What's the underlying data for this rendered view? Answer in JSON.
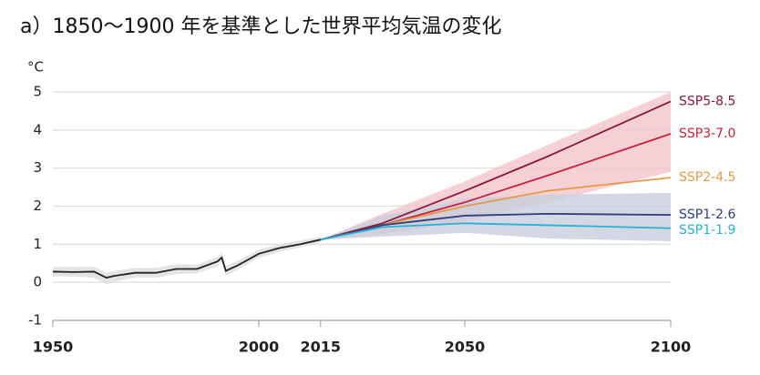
{
  "chart_data": {
    "type": "line",
    "title": "a）1850〜1900 年を基準とした世界平均気温の変化",
    "y_label": "°C",
    "xlim": [
      1950,
      2100
    ],
    "xticks": [
      1950,
      2000,
      2015,
      2050,
      2100
    ],
    "ylim": [
      -1,
      5
    ],
    "yticks": [
      -1,
      0,
      1,
      2,
      3,
      4,
      5
    ],
    "grid": true,
    "series": [
      {
        "color": "#222222",
        "x": [
          1950,
          1955,
          1960,
          1963,
          1965,
          1970,
          1975,
          1980,
          1985,
          1990,
          1991,
          1992,
          1995,
          2000,
          2005,
          2010,
          2015
        ],
        "values": [
          0.28,
          0.27,
          0.28,
          0.12,
          0.17,
          0.25,
          0.25,
          0.35,
          0.35,
          0.55,
          0.65,
          0.3,
          0.45,
          0.75,
          0.9,
          1.0,
          1.12
        ],
        "low": [
          0.15,
          0.15,
          0.12,
          -0.05,
          0.02,
          0.12,
          0.12,
          0.22,
          0.24,
          0.42,
          0.52,
          0.18,
          0.33,
          0.65,
          0.8,
          0.92,
          1.05
        ],
        "high": [
          0.4,
          0.4,
          0.4,
          0.25,
          0.3,
          0.38,
          0.38,
          0.48,
          0.47,
          0.67,
          0.78,
          0.43,
          0.57,
          0.86,
          1.0,
          1.1,
          1.2
        ],
        "band_color": "#dddddd"
      },
      {
        "name": "SSP5-8.5",
        "color": "#8b1a35",
        "x": [
          2015,
          2030,
          2050,
          2070,
          2100
        ],
        "values": [
          1.12,
          1.55,
          2.4,
          3.3,
          4.75
        ]
      },
      {
        "name": "SSP3-7.0",
        "color": "#c8203a",
        "x": [
          2015,
          2030,
          2050,
          2070,
          2100
        ],
        "values": [
          1.12,
          1.5,
          2.1,
          2.8,
          3.9
        ],
        "low": [
          1.12,
          1.25,
          1.6,
          2.1,
          2.9
        ],
        "high": [
          1.12,
          1.8,
          2.65,
          3.6,
          5.0
        ],
        "band_color": "#f2c4cb"
      },
      {
        "name": "SSP2-4.5",
        "color": "#e39a4a",
        "x": [
          2015,
          2030,
          2050,
          2070,
          2100
        ],
        "values": [
          1.12,
          1.5,
          2.0,
          2.4,
          2.75
        ]
      },
      {
        "name": "SSP1-2.6",
        "color": "#2c3e7c",
        "x": [
          2015,
          2030,
          2050,
          2070,
          2100
        ],
        "values": [
          1.12,
          1.5,
          1.75,
          1.8,
          1.77
        ],
        "low": [
          1.12,
          1.2,
          1.3,
          1.15,
          1.08
        ],
        "high": [
          1.12,
          1.75,
          2.2,
          2.3,
          2.35
        ],
        "band_color": "#c9cedf"
      },
      {
        "name": "SSP1-1.9",
        "color": "#2ab0d0",
        "x": [
          2015,
          2030,
          2050,
          2070,
          2100
        ],
        "values": [
          1.12,
          1.45,
          1.55,
          1.5,
          1.42
        ]
      }
    ]
  }
}
